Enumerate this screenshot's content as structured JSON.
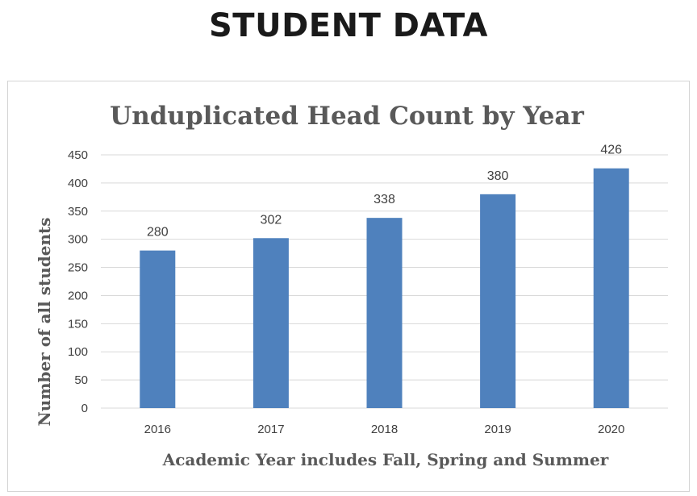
{
  "page": {
    "title": "STUDENT DATA"
  },
  "chart_data": {
    "type": "bar",
    "title": "Unduplicated  Head Count by Year",
    "xlabel": "Academic Year includes Fall, Spring and Summer",
    "ylabel": "Number of all students",
    "categories": [
      "2016",
      "2017",
      "2018",
      "2019",
      "2020"
    ],
    "values": [
      280,
      302,
      338,
      380,
      426
    ],
    "data_labels": [
      "280",
      "302",
      "338",
      "380",
      "426"
    ],
    "ylim": [
      0,
      450
    ],
    "yticks": [
      0,
      50,
      100,
      150,
      200,
      250,
      300,
      350,
      400,
      450
    ],
    "ytick_labels": [
      "0",
      "50",
      "100",
      "150",
      "200",
      "250",
      "300",
      "350",
      "400",
      "450"
    ],
    "grid": true,
    "legend": "none",
    "colors": {
      "bar": "#4f81bd",
      "grid": "#d9d9d9",
      "title_text": "#595959",
      "tick_text": "#404040"
    }
  }
}
